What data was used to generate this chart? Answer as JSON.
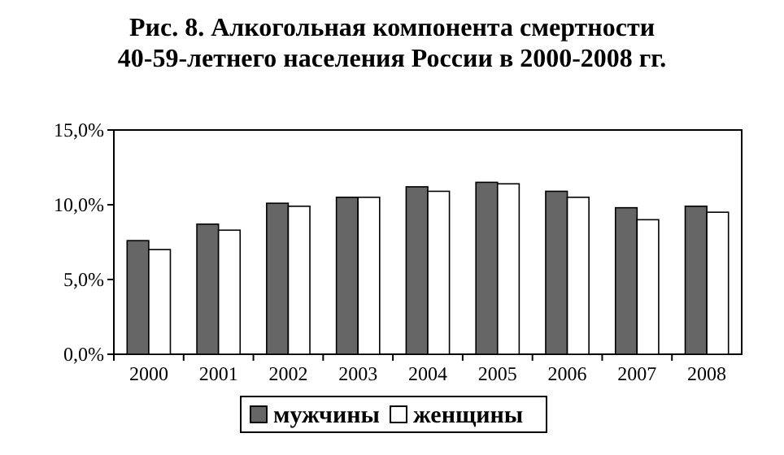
{
  "chart_data": {
    "type": "bar",
    "title": "Рис. 8. Алкогольная компонента смертности 40-59-летнего населения России в 2000-2008 гг.",
    "categories": [
      "2000",
      "2001",
      "2002",
      "2003",
      "2004",
      "2005",
      "2006",
      "2007",
      "2008"
    ],
    "series": [
      {
        "name": "мужчины",
        "color": "#666666",
        "values": [
          7.6,
          8.7,
          10.1,
          10.5,
          11.2,
          11.5,
          10.9,
          9.8,
          9.9
        ]
      },
      {
        "name": "женщины",
        "color": "#ffffff",
        "values": [
          7.0,
          8.3,
          9.9,
          10.5,
          10.9,
          11.4,
          10.5,
          9.0,
          9.5
        ]
      }
    ],
    "ylim": [
      0,
      15
    ],
    "yticks": [
      {
        "value": 0,
        "label": "0,0%"
      },
      {
        "value": 5,
        "label": "5,0%"
      },
      {
        "value": 10,
        "label": "10,0%"
      },
      {
        "value": 15,
        "label": "15,0%"
      }
    ],
    "legend": "bottom",
    "grid": false
  }
}
